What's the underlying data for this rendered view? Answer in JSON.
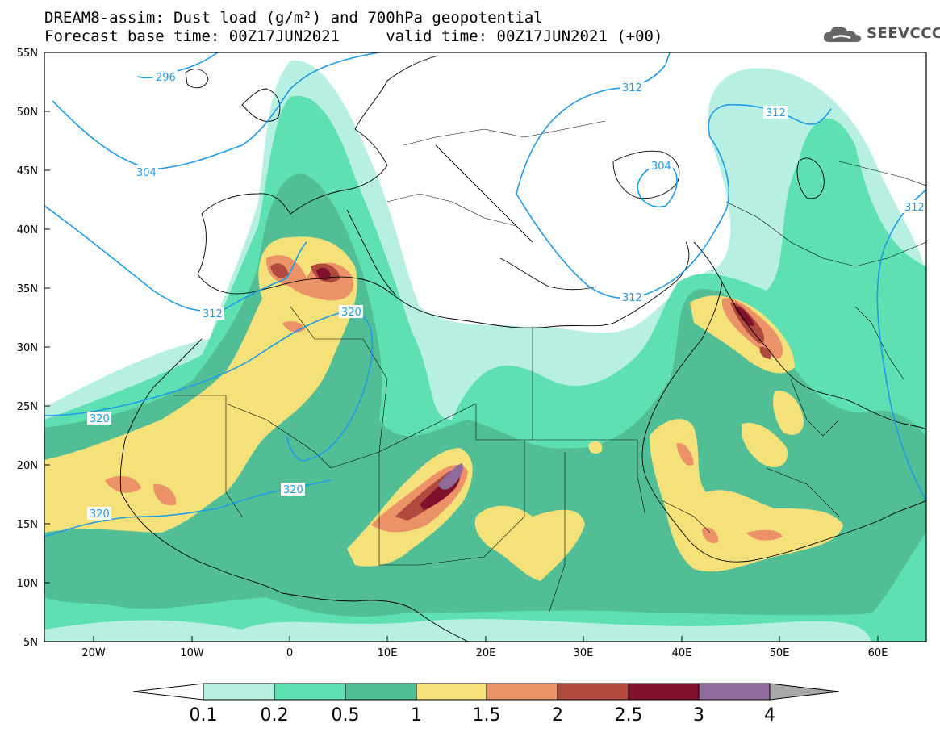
{
  "title": {
    "line1": "DREAM8-assim: Dust load (g/m²) and 700hPa geopotential",
    "line2": "Forecast base time: 00Z17JUN2021     valid time: 00Z17JUN2021 (+00)"
  },
  "logo": {
    "text": "SEEVCCC",
    "icon": "cloud-icon"
  },
  "map": {
    "lat_ticks": [
      "55N",
      "50N",
      "45N",
      "40N",
      "35N",
      "30N",
      "25N",
      "20N",
      "15N",
      "10N",
      "5N"
    ],
    "lon_ticks": [
      "20W",
      "10W",
      "0",
      "10E",
      "20E",
      "30E",
      "40E",
      "50E",
      "60E"
    ],
    "contour_labels": [
      "296",
      "304",
      "312",
      "312",
      "312",
      "304",
      "312",
      "312",
      "320",
      "320",
      "320",
      "320"
    ]
  },
  "colorbar": {
    "ticks": [
      "0.1",
      "0.2",
      "0.5",
      "1",
      "1.5",
      "2",
      "2.5",
      "3",
      "4"
    ],
    "colors": [
      "#b8efe3",
      "#5ee0b3",
      "#52be96",
      "#f4e17a",
      "#ec9268",
      "#b04a3f",
      "#80102c",
      "#8f6b9c"
    ],
    "arrow_left": "#ffffff",
    "arrow_right": "#a8a8a8"
  },
  "dust_colors": {
    "c01": "#b8efe3",
    "c02": "#5ee0b3",
    "c05": "#52be96",
    "c1": "#f4e17a",
    "c15": "#ec9268",
    "c2": "#b04a3f",
    "c25": "#80102c",
    "c3": "#8f6b9c"
  }
}
